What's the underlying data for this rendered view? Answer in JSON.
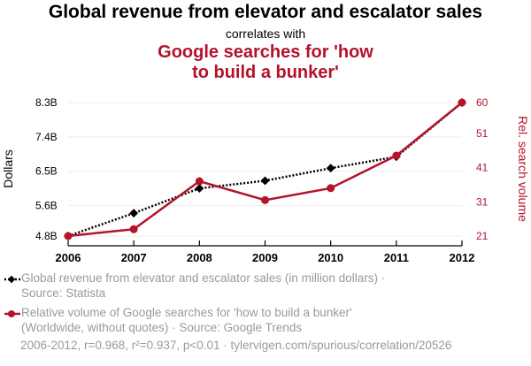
{
  "header": {
    "title": "Global revenue from elevator and escalator sales",
    "subtitle": "correlates with",
    "title2_line1": "Google searches for 'how",
    "title2_line2": "to build a bunker'"
  },
  "legend": {
    "series1_line1": "Global revenue from elevator and escalator sales (in million dollars) ·",
    "series1_line2": "Source: Statista",
    "series2_line1": "Relative volume of Google searches for 'how to build a bunker'",
    "series2_line2": "(Worldwide, without quotes) · Source: Google Trends"
  },
  "footer": {
    "text": "2006-2012, r=0.968, r²=0.937, p<0.01 · tylervigen.com/spurious/correlation/20526"
  },
  "colors": {
    "series1": "#000000",
    "series2": "#b5122b",
    "grid": "#eeeeee",
    "muted": "#9a9a9a"
  },
  "chart_data": {
    "type": "line",
    "x": [
      2006,
      2007,
      2008,
      2009,
      2010,
      2011,
      2012
    ],
    "xlabel": "",
    "left_axis": {
      "label": "Dollars",
      "range": [
        4.8,
        8.3
      ],
      "ticks": [
        4.8,
        5.6,
        6.5,
        7.4,
        8.3
      ],
      "tick_labels": [
        "4.8B",
        "5.6B",
        "6.5B",
        "7.4B",
        "8.3B"
      ]
    },
    "right_axis": {
      "label": "Rel. search volume",
      "range": [
        21,
        60
      ],
      "ticks": [
        21,
        31,
        41,
        51,
        60
      ],
      "tick_labels": [
        "21",
        "31",
        "41",
        "51",
        "60"
      ]
    },
    "series": [
      {
        "axis": "left",
        "style": "dotted",
        "marker": "diamond",
        "values": [
          4.8,
          5.4,
          6.05,
          6.25,
          6.58,
          6.88,
          8.3
        ]
      },
      {
        "axis": "right",
        "style": "solid",
        "marker": "circle",
        "values": [
          21,
          23,
          37,
          31.5,
          35,
          44.5,
          60
        ]
      }
    ],
    "grid": true,
    "legend_position": "bottom"
  }
}
